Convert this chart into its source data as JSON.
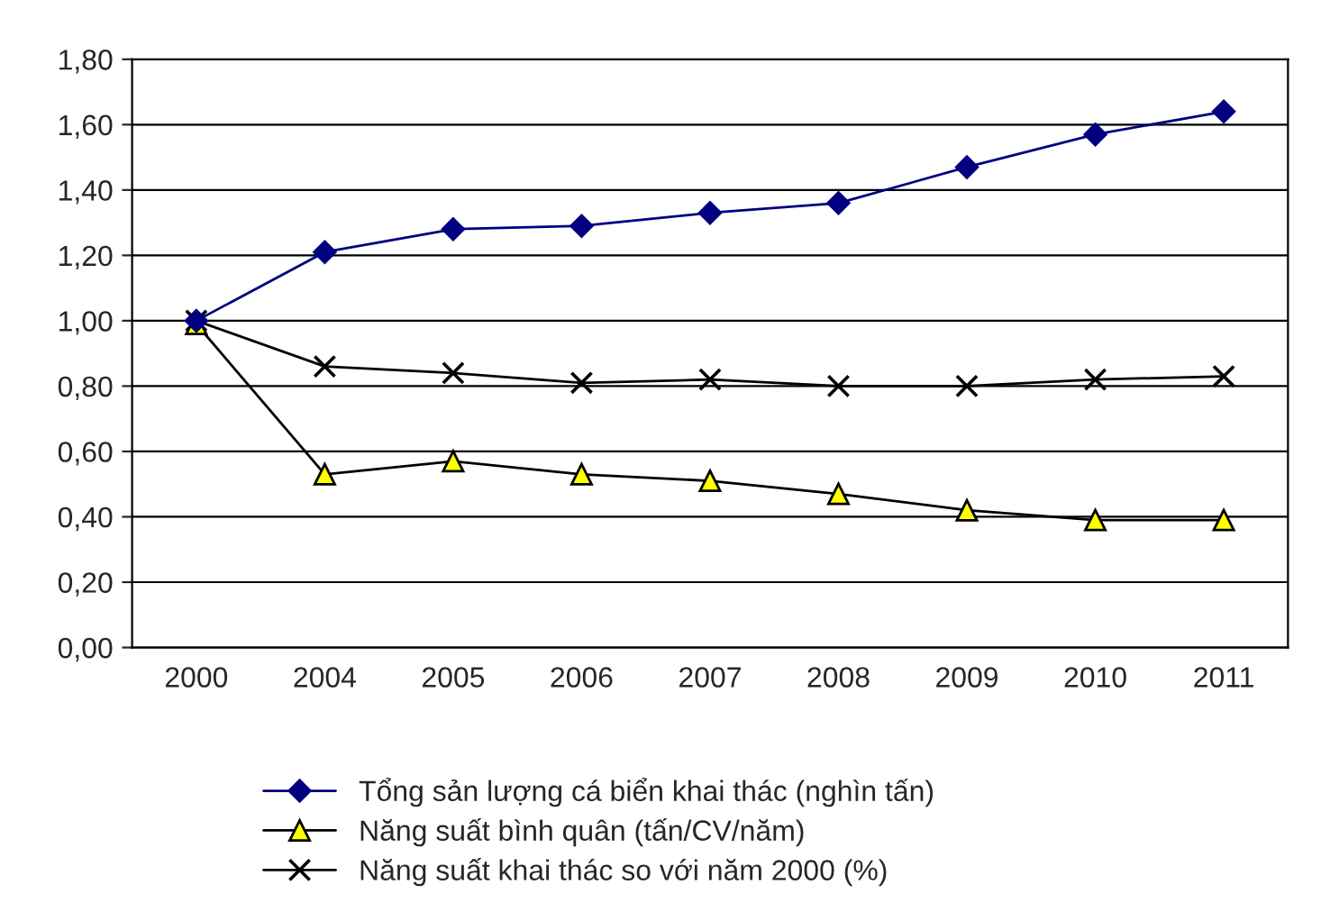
{
  "chart_data": {
    "type": "line",
    "categories": [
      "2000",
      "2004",
      "2005",
      "2006",
      "2007",
      "2008",
      "2009",
      "2010",
      "2011"
    ],
    "series": [
      {
        "name": "Tổng sản lượng cá biển khai thác (nghìn tấn)",
        "color": "#000080",
        "marker": "diamond",
        "values": [
          1.0,
          1.21,
          1.28,
          1.29,
          1.33,
          1.36,
          1.47,
          1.57,
          1.64
        ]
      },
      {
        "name": "Năng suất bình quân (tấn/CV/năm)",
        "color": "#ffff00",
        "marker": "triangle",
        "values": [
          0.99,
          0.53,
          0.57,
          0.53,
          0.51,
          0.47,
          0.42,
          0.39,
          0.39
        ]
      },
      {
        "name": "Năng suất khai thác so với năm 2000 (%)",
        "color": "#000000",
        "marker": "cross",
        "values": [
          1.0,
          0.86,
          0.84,
          0.81,
          0.82,
          0.8,
          0.8,
          0.82,
          0.83
        ]
      }
    ],
    "ylim": [
      0,
      1.8
    ],
    "yticks": [
      {
        "value": 0,
        "label": "0,00"
      },
      {
        "value": 0.2,
        "label": "0,20"
      },
      {
        "value": 0.4,
        "label": "0,40"
      },
      {
        "value": 0.6,
        "label": "0,60"
      },
      {
        "value": 0.8,
        "label": "0,80"
      },
      {
        "value": 1.0,
        "label": "1,00"
      },
      {
        "value": 1.2,
        "label": "1,20"
      },
      {
        "value": 1.4,
        "label": "1,40"
      },
      {
        "value": 1.6,
        "label": "1,60"
      },
      {
        "value": 1.8,
        "label": "1,80"
      }
    ],
    "grid": "y",
    "legend": "bottom",
    "line_style": "solid"
  }
}
